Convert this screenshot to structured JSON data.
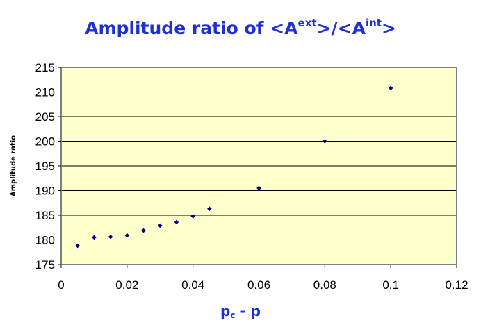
{
  "title": {
    "main": "Amplitude ratio of <A",
    "sup1": "ext",
    "mid": ">/<A",
    "sup2": "int",
    "end": ">"
  },
  "xlabel": {
    "p": "p",
    "sub": "c",
    "rest": " - p"
  },
  "colors": {
    "plot_background": "#ffffcc",
    "plot_border": "#808080",
    "marker": "#000080",
    "title": "#1f2fd6"
  },
  "chart_data": {
    "type": "scatter",
    "ylabel": "Amplitude ratio",
    "xlim": [
      0,
      0.12
    ],
    "ylim": [
      175,
      215
    ],
    "x_ticks": [
      "0",
      "0.02",
      "0.04",
      "0.06",
      "0.08",
      "0.1",
      "0.12"
    ],
    "y_ticks": [
      "175",
      "180",
      "185",
      "190",
      "195",
      "200",
      "205",
      "210",
      "215"
    ],
    "grid": "horizontal",
    "legend": "none",
    "series": [
      {
        "x": [
          0.005,
          0.01,
          0.015,
          0.02,
          0.025,
          0.03,
          0.035,
          0.04,
          0.045,
          0.06,
          0.08,
          0.1
        ],
        "y": [
          178.8,
          180.5,
          180.6,
          180.9,
          181.9,
          182.9,
          183.6,
          184.8,
          186.3,
          190.5,
          200.0,
          210.8
        ]
      }
    ]
  }
}
